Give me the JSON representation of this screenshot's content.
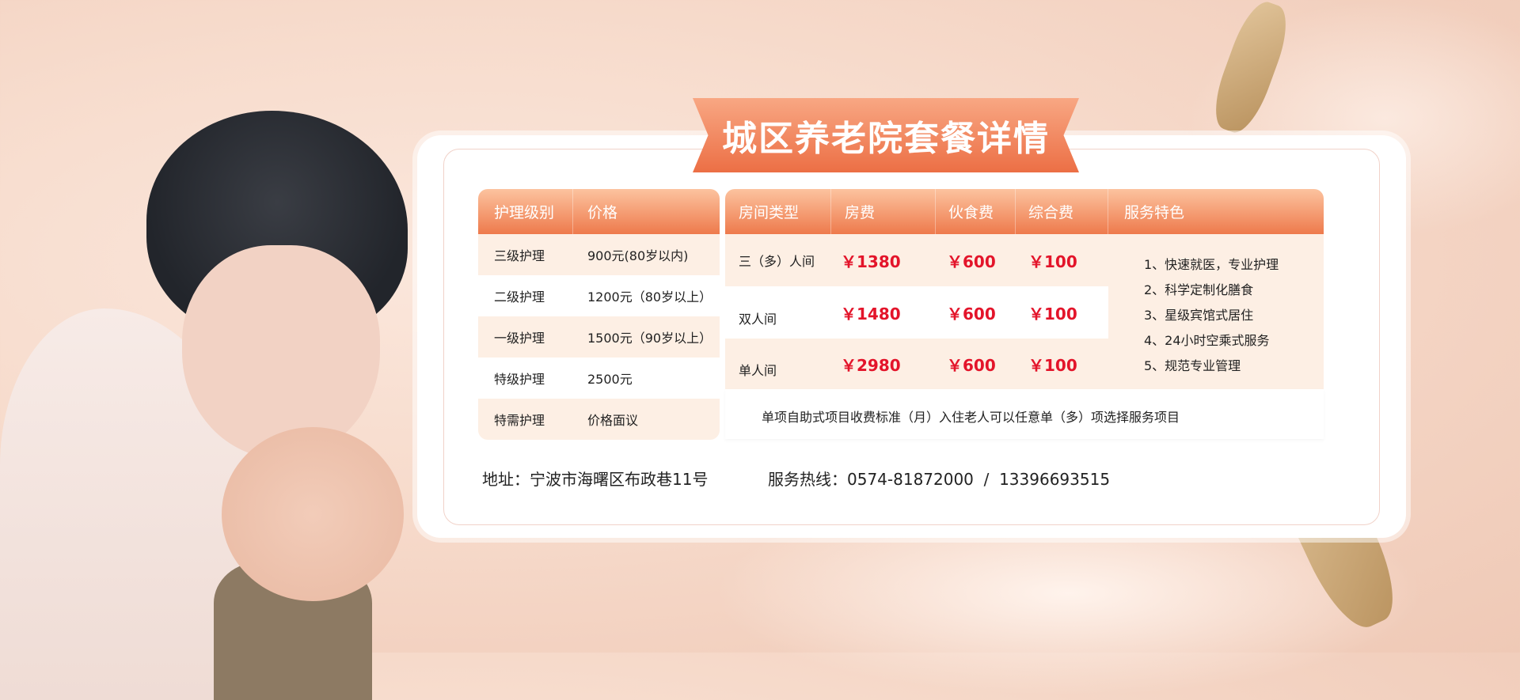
{
  "title": "城区养老院套餐详情",
  "care_table": {
    "headers": [
      "护理级别",
      "价格"
    ],
    "rows": [
      [
        "三级护理",
        "900元(80岁以内)"
      ],
      [
        "二级护理",
        "1200元（80岁以上）"
      ],
      [
        "一级护理",
        "1500元（90岁以上）"
      ],
      [
        "特级护理",
        "2500元"
      ],
      [
        "特需护理",
        "价格面议"
      ]
    ]
  },
  "room_table": {
    "headers": [
      "房间类型",
      "房费",
      "伙食费",
      "综合费",
      "服务特色"
    ],
    "rows": [
      [
        "三（多）人间",
        "￥1380",
        "￥600",
        "￥100"
      ],
      [
        "双人间",
        "￥1480",
        "￥600",
        "￥100"
      ],
      [
        "单人间",
        "￥2980",
        "￥600",
        "￥100"
      ]
    ],
    "features": [
      "1、快速就医，专业护理",
      "2、科学定制化膳食",
      "3、星级宾馆式居住",
      "4、24小时空乘式服务",
      "5、规范专业管理"
    ],
    "note": "单项自助式项目收费标准（月）入住老人可以任意单（多）项选择服务项目"
  },
  "footer": {
    "address": "地址：宁波市海曙区布政巷11号",
    "hotline": "服务热线：0574-81872000  /  13396693515"
  },
  "colors": {
    "accent": "#ee7a4c",
    "price": "#e3142a",
    "row_bg": "#fdefe4"
  }
}
